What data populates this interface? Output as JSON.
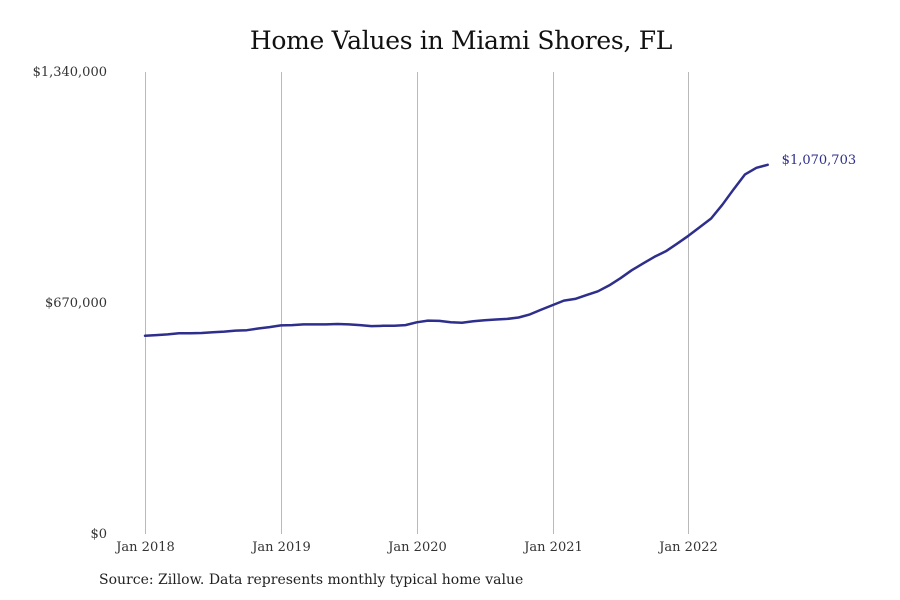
{
  "chart_data": {
    "type": "line",
    "title": "Home Values in Miami Shores, FL",
    "source": "Source: Zillow. Data represents monthly typical home value",
    "xlabel": "",
    "ylabel": "",
    "ylim": [
      0,
      1340000
    ],
    "yticks": [
      {
        "value": 0,
        "label": "$0"
      },
      {
        "value": 670000,
        "label": "$670,000"
      },
      {
        "value": 1340000,
        "label": "$1,340,000"
      }
    ],
    "xticks": [
      {
        "date": "2018-01",
        "label": "Jan 2018"
      },
      {
        "date": "2019-01",
        "label": "Jan 2019"
      },
      {
        "date": "2020-01",
        "label": "Jan 2020"
      },
      {
        "date": "2021-01",
        "label": "Jan 2021"
      },
      {
        "date": "2022-01",
        "label": "Jan 2022"
      }
    ],
    "xlim": [
      "2018-01",
      "2022-09"
    ],
    "grid": {
      "vertical": true,
      "horizontal": false
    },
    "line_color": "#2e2e8c",
    "series": [
      {
        "x": [
          "2018-01",
          "2018-02",
          "2018-03",
          "2018-04",
          "2018-05",
          "2018-06",
          "2018-07",
          "2018-08",
          "2018-09",
          "2018-10",
          "2018-11",
          "2018-12",
          "2019-01",
          "2019-02",
          "2019-03",
          "2019-04",
          "2019-05",
          "2019-06",
          "2019-07",
          "2019-08",
          "2019-09",
          "2019-10",
          "2019-11",
          "2019-12",
          "2020-01",
          "2020-02",
          "2020-03",
          "2020-04",
          "2020-05",
          "2020-06",
          "2020-07",
          "2020-08",
          "2020-09",
          "2020-10",
          "2020-11",
          "2020-12",
          "2021-01",
          "2021-02",
          "2021-03",
          "2021-04",
          "2021-05",
          "2021-06",
          "2021-07",
          "2021-08",
          "2021-09",
          "2021-10",
          "2021-11",
          "2021-12",
          "2022-01",
          "2022-02",
          "2022-03",
          "2022-04",
          "2022-05",
          "2022-06",
          "2022-07",
          "2022-08"
        ],
        "values": [
          575000,
          577000,
          579000,
          582000,
          582000,
          583000,
          585000,
          587000,
          590000,
          591000,
          596000,
          600000,
          605000,
          606000,
          608000,
          608000,
          608000,
          609000,
          608000,
          606000,
          603000,
          604000,
          604000,
          606000,
          614000,
          619000,
          618000,
          614000,
          613000,
          617000,
          620000,
          622000,
          624000,
          628000,
          637000,
          651000,
          664000,
          677000,
          682000,
          693000,
          704000,
          721000,
          742000,
          765000,
          785000,
          804000,
          820000,
          842000,
          865000,
          890000,
          915000,
          955000,
          1000000,
          1043000,
          1062000,
          1070703
        ]
      }
    ],
    "end_label": "$1,070,703"
  }
}
